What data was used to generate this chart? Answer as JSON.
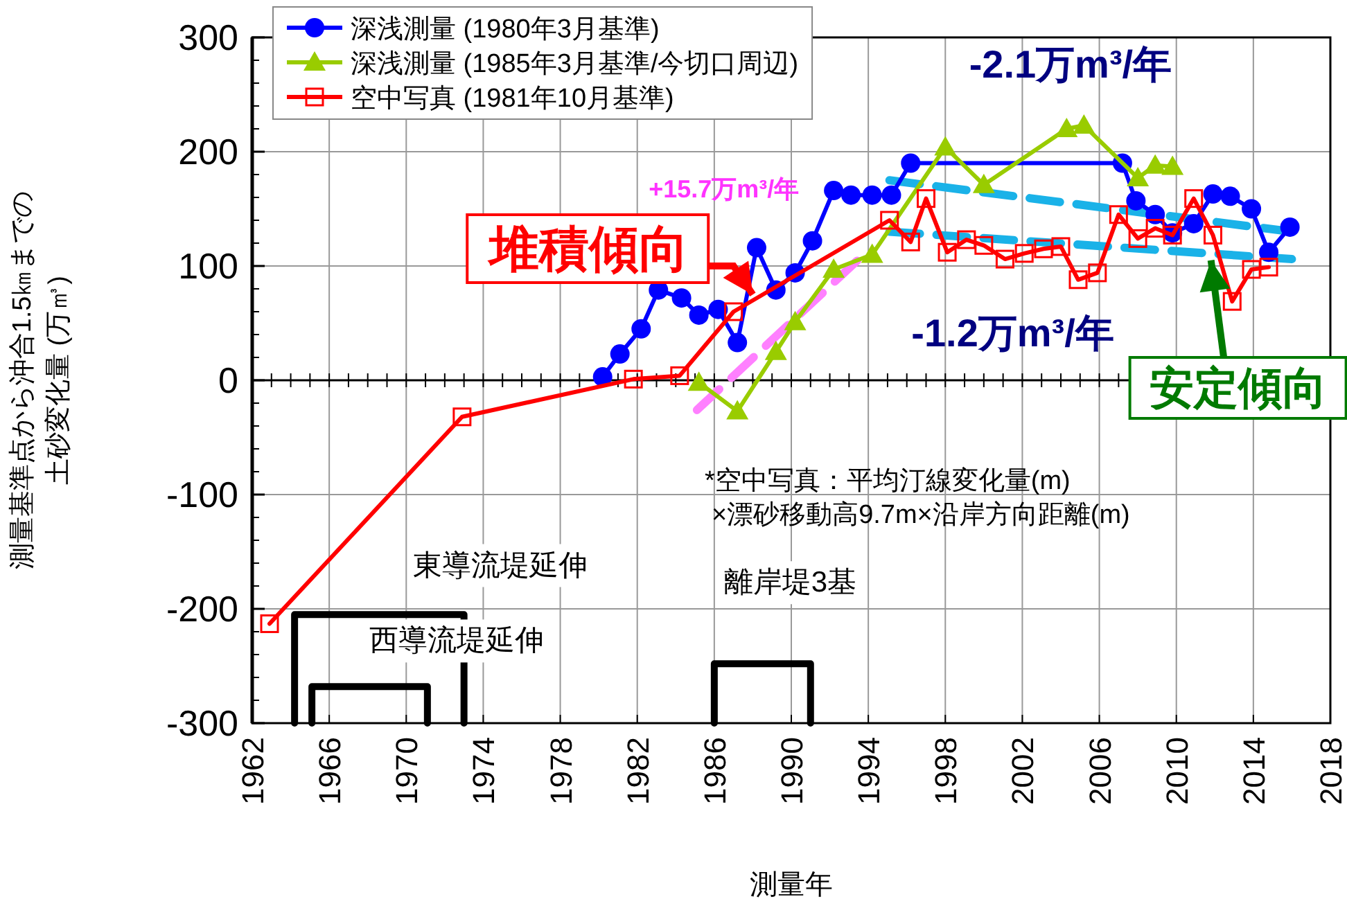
{
  "chart_data": {
    "type": "line",
    "xlabel": "測量年",
    "ylabel": "測量基準点から沖合1.5㎞までの土砂変化量 (万㎥)",
    "xlim": [
      1962,
      2018
    ],
    "xticks": [
      1962,
      1966,
      1970,
      1974,
      1978,
      1982,
      1986,
      1990,
      1994,
      1998,
      2002,
      2006,
      2010,
      2014,
      2018
    ],
    "ylim": [
      -300,
      300
    ],
    "yticks": [
      -300,
      -200,
      -100,
      0,
      100,
      200,
      300
    ],
    "grid": true,
    "legend": "top left",
    "series": [
      {
        "name": "深浅測量 (1980年3月基準)",
        "color": "#0000ff",
        "marker": "circle",
        "x": [
          1980.2,
          1981.1,
          1982.2,
          1983.1,
          1984.3,
          1985.2,
          1986.2,
          1987.2,
          1988.2,
          1989.2,
          1990.2,
          1991.1,
          1992.2,
          1993.1,
          1994.2,
          1995.2,
          1996.2,
          2007.2,
          2007.9,
          2008.9,
          2009.8,
          2010.9,
          2011.9,
          2012.8,
          2013.9,
          2014.8,
          2015.9
        ],
        "values": [
          3,
          23,
          45,
          79,
          72,
          57,
          62,
          33,
          116,
          79,
          94,
          122,
          166,
          162,
          162,
          162,
          190,
          190,
          157,
          145,
          129,
          137,
          163,
          161,
          150,
          112,
          134
        ]
      },
      {
        "name": "深浅測量 (1985年3月基準/今切口周辺)",
        "color": "#99cc00",
        "marker": "triangle",
        "x": [
          1985.2,
          1987.2,
          1989.2,
          1990.2,
          1992.2,
          1994.2,
          1998.0,
          2000.0,
          2004.3,
          2005.2,
          2008.0,
          2008.9,
          2009.8
        ],
        "values": [
          -2,
          -27,
          25,
          51,
          97,
          110,
          204,
          171,
          220,
          223,
          177,
          188,
          187
        ]
      },
      {
        "name": "空中写真 (1981年10月基準)",
        "color": "#ff0000",
        "marker": "square",
        "x": [
          1962.9,
          1972.9,
          1981.8,
          1984.2,
          1987.0,
          1995.1,
          1996.2,
          1997.0,
          1998.1,
          1999.1,
          2000.0,
          2001.1,
          2002.1,
          2003.1,
          2004.0,
          2004.9,
          2005.9,
          2007.0,
          2008.0,
          2008.9,
          2009.8,
          2010.9,
          2011.9,
          2012.9,
          2013.9,
          2014.8
        ],
        "values": [
          -213,
          -32,
          1,
          4,
          60,
          140,
          121,
          159,
          112,
          123,
          118,
          106,
          111,
          115,
          117,
          88,
          94,
          145,
          124,
          133,
          127,
          159,
          127,
          69,
          97,
          99
        ]
      },
      {
        "color": "#ff80ff",
        "marker": "none",
        "line_style": "dashed",
        "x": [
          1985.1,
          1993.7
        ],
        "values": [
          -26,
          109
        ]
      },
      {
        "color": "#1ab2e8",
        "marker": "none",
        "line_style": "dashed",
        "x": [
          1995.1,
          2016.0
        ],
        "values": [
          175,
          130
        ]
      },
      {
        "color": "#1ab2e8",
        "marker": "none",
        "line_style": "dashed",
        "x": [
          1995.1,
          2016.0
        ],
        "values": [
          130,
          106
        ]
      },
      {
        "color": "#000000",
        "marker": "none",
        "line_style": "solid",
        "x": [
          1964.2,
          1964.2,
          1973.0,
          1973.0
        ],
        "values": [
          -300,
          -205,
          -205,
          -300
        ]
      },
      {
        "color": "#000000",
        "marker": "none",
        "line_style": "solid",
        "x": [
          1965.1,
          1965.1,
          1971.1,
          1971.1
        ],
        "values": [
          -300,
          -268,
          -268,
          -300
        ]
      },
      {
        "color": "#000000",
        "marker": "none",
        "line_style": "solid",
        "x": [
          1986.0,
          1986.0,
          1991.0,
          1991.0
        ],
        "values": [
          -300,
          -248,
          -248,
          -300
        ]
      }
    ],
    "annotations": [
      "+15.7万m³/年",
      "-2.1万m³/年",
      "-1.2万m³/年",
      {
        "text": "堆積傾向",
        "x": 1988.0,
        "y": 75
      },
      {
        "text": "安定傾向",
        "x": 2011.8,
        "y": 105
      },
      "*空中写真：平均汀線変化量(m)\n×漂砂移動高9.7m×沿岸方向距離(m)",
      "東導流堤延伸",
      "西導流堤延伸",
      "離岸堤3基"
    ]
  }
}
